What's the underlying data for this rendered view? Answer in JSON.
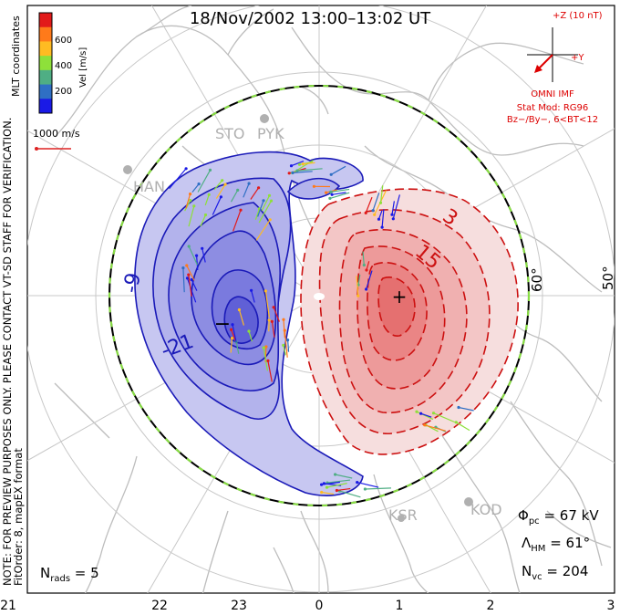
{
  "title": "18/Nov/2002  13:00–13:02  UT",
  "colorbar": {
    "axis_label": "Vel [m/s]",
    "tick_labels": [
      "600",
      "400",
      "200"
    ],
    "colors": [
      "#1a1ae6",
      "#2f6fc4",
      "#4fae84",
      "#8ee03a",
      "#ffbb22",
      "#ff7a1a",
      "#e21a1a"
    ],
    "coord_label": "MLT coordinates"
  },
  "reference_vector": {
    "label": "1000 m/s",
    "color": "#dd2222"
  },
  "imf": {
    "z_label": "+Z (10 nT)",
    "y_label": "+Y",
    "source_label": "OMNI IMF",
    "model_label": "Stat Mod: RG96",
    "condition_label": "Bz−/By−, 6<BT<12"
  },
  "notice": {
    "line1": "NOTE: FOR PREVIEW PURPOSES ONLY. PLEASE CONTACT VT-SD STAFF FOR VERIFICATION.",
    "line2": "FitOrder: 8, mapEX format"
  },
  "latitude_labels": [
    "60°",
    "50°"
  ],
  "radar_labels": [
    "STO",
    "PYK",
    "HAN",
    "KSR",
    "KOD"
  ],
  "contour_labels": {
    "negative": [
      "-9",
      "-21"
    ],
    "positive": [
      "3",
      "15"
    ]
  },
  "mlt_ticks": [
    "21",
    "22",
    "23",
    "0",
    "1",
    "2",
    "3"
  ],
  "stats": {
    "phi_symbol": "Φ",
    "phi_sub": "pc",
    "phi_value": " = 67 kV",
    "lambda_symbol": "Λ",
    "lambda_sub": "HM",
    "lambda_value": " = 61°",
    "n_vc_symbol": "N",
    "n_vc_sub": "vc",
    "n_vc_value": " = 204",
    "n_rads_symbol": "N",
    "n_rads_sub": "rads",
    "n_rads_value": " = 5"
  },
  "colors": {
    "negative_fill": "#8a8ae0",
    "negative_line": "#1a1ab8",
    "positive_fill": "#f08080",
    "positive_line": "#cc1010",
    "hmb_dash": "#88dd44",
    "coastline": "#bdbdbd",
    "grid": "#c8c8c8"
  }
}
